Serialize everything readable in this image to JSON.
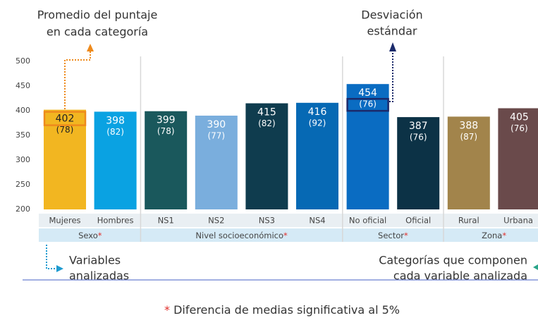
{
  "chart_data": {
    "type": "bar",
    "categories": [
      "Mujeres",
      "Hombres",
      "NS1",
      "NS2",
      "NS3",
      "NS4",
      "No oficial",
      "Oficial",
      "Rural",
      "Urbana"
    ],
    "values": [
      402,
      398,
      399,
      390,
      415,
      416,
      454,
      387,
      388,
      405
    ],
    "std_dev_labels": [
      "(78)",
      "(82)",
      "(78)",
      "(77)",
      "(82)",
      "(92)",
      "(76)",
      "(76)",
      "(87)",
      "(76)"
    ],
    "colors": [
      "#f2b621",
      "#0aa2e2",
      "#1a585c",
      "#7aaedd",
      "#0f3c4e",
      "#0669b4",
      "#0a6cc2",
      "#0c3246",
      "#a2844b",
      "#6a4a4b"
    ],
    "groups": [
      {
        "name": "Sexo",
        "mark": "*",
        "count": 2
      },
      {
        "name": "Nivel socioeconómico",
        "mark": "*",
        "count": 4
      },
      {
        "name": "Sector",
        "mark": "*",
        "count": 2
      },
      {
        "name": "Zona",
        "mark": "*",
        "count": 2
      }
    ],
    "ylim": [
      200,
      500
    ],
    "yticks": [
      200,
      250,
      300,
      350,
      400,
      450,
      500
    ],
    "grid": false,
    "annotations": {
      "mean": [
        "Promedio del puntaje",
        "en cada categoría"
      ],
      "std_dev": [
        "Desviación",
        "estándar"
      ],
      "variables": [
        "Variables",
        "analizadas"
      ],
      "categories": [
        "Categorías que componen",
        "cada variable analizada"
      ]
    },
    "footnote": {
      "mark": "*",
      "text": "Diferencia de medias significativa al 5%"
    }
  }
}
